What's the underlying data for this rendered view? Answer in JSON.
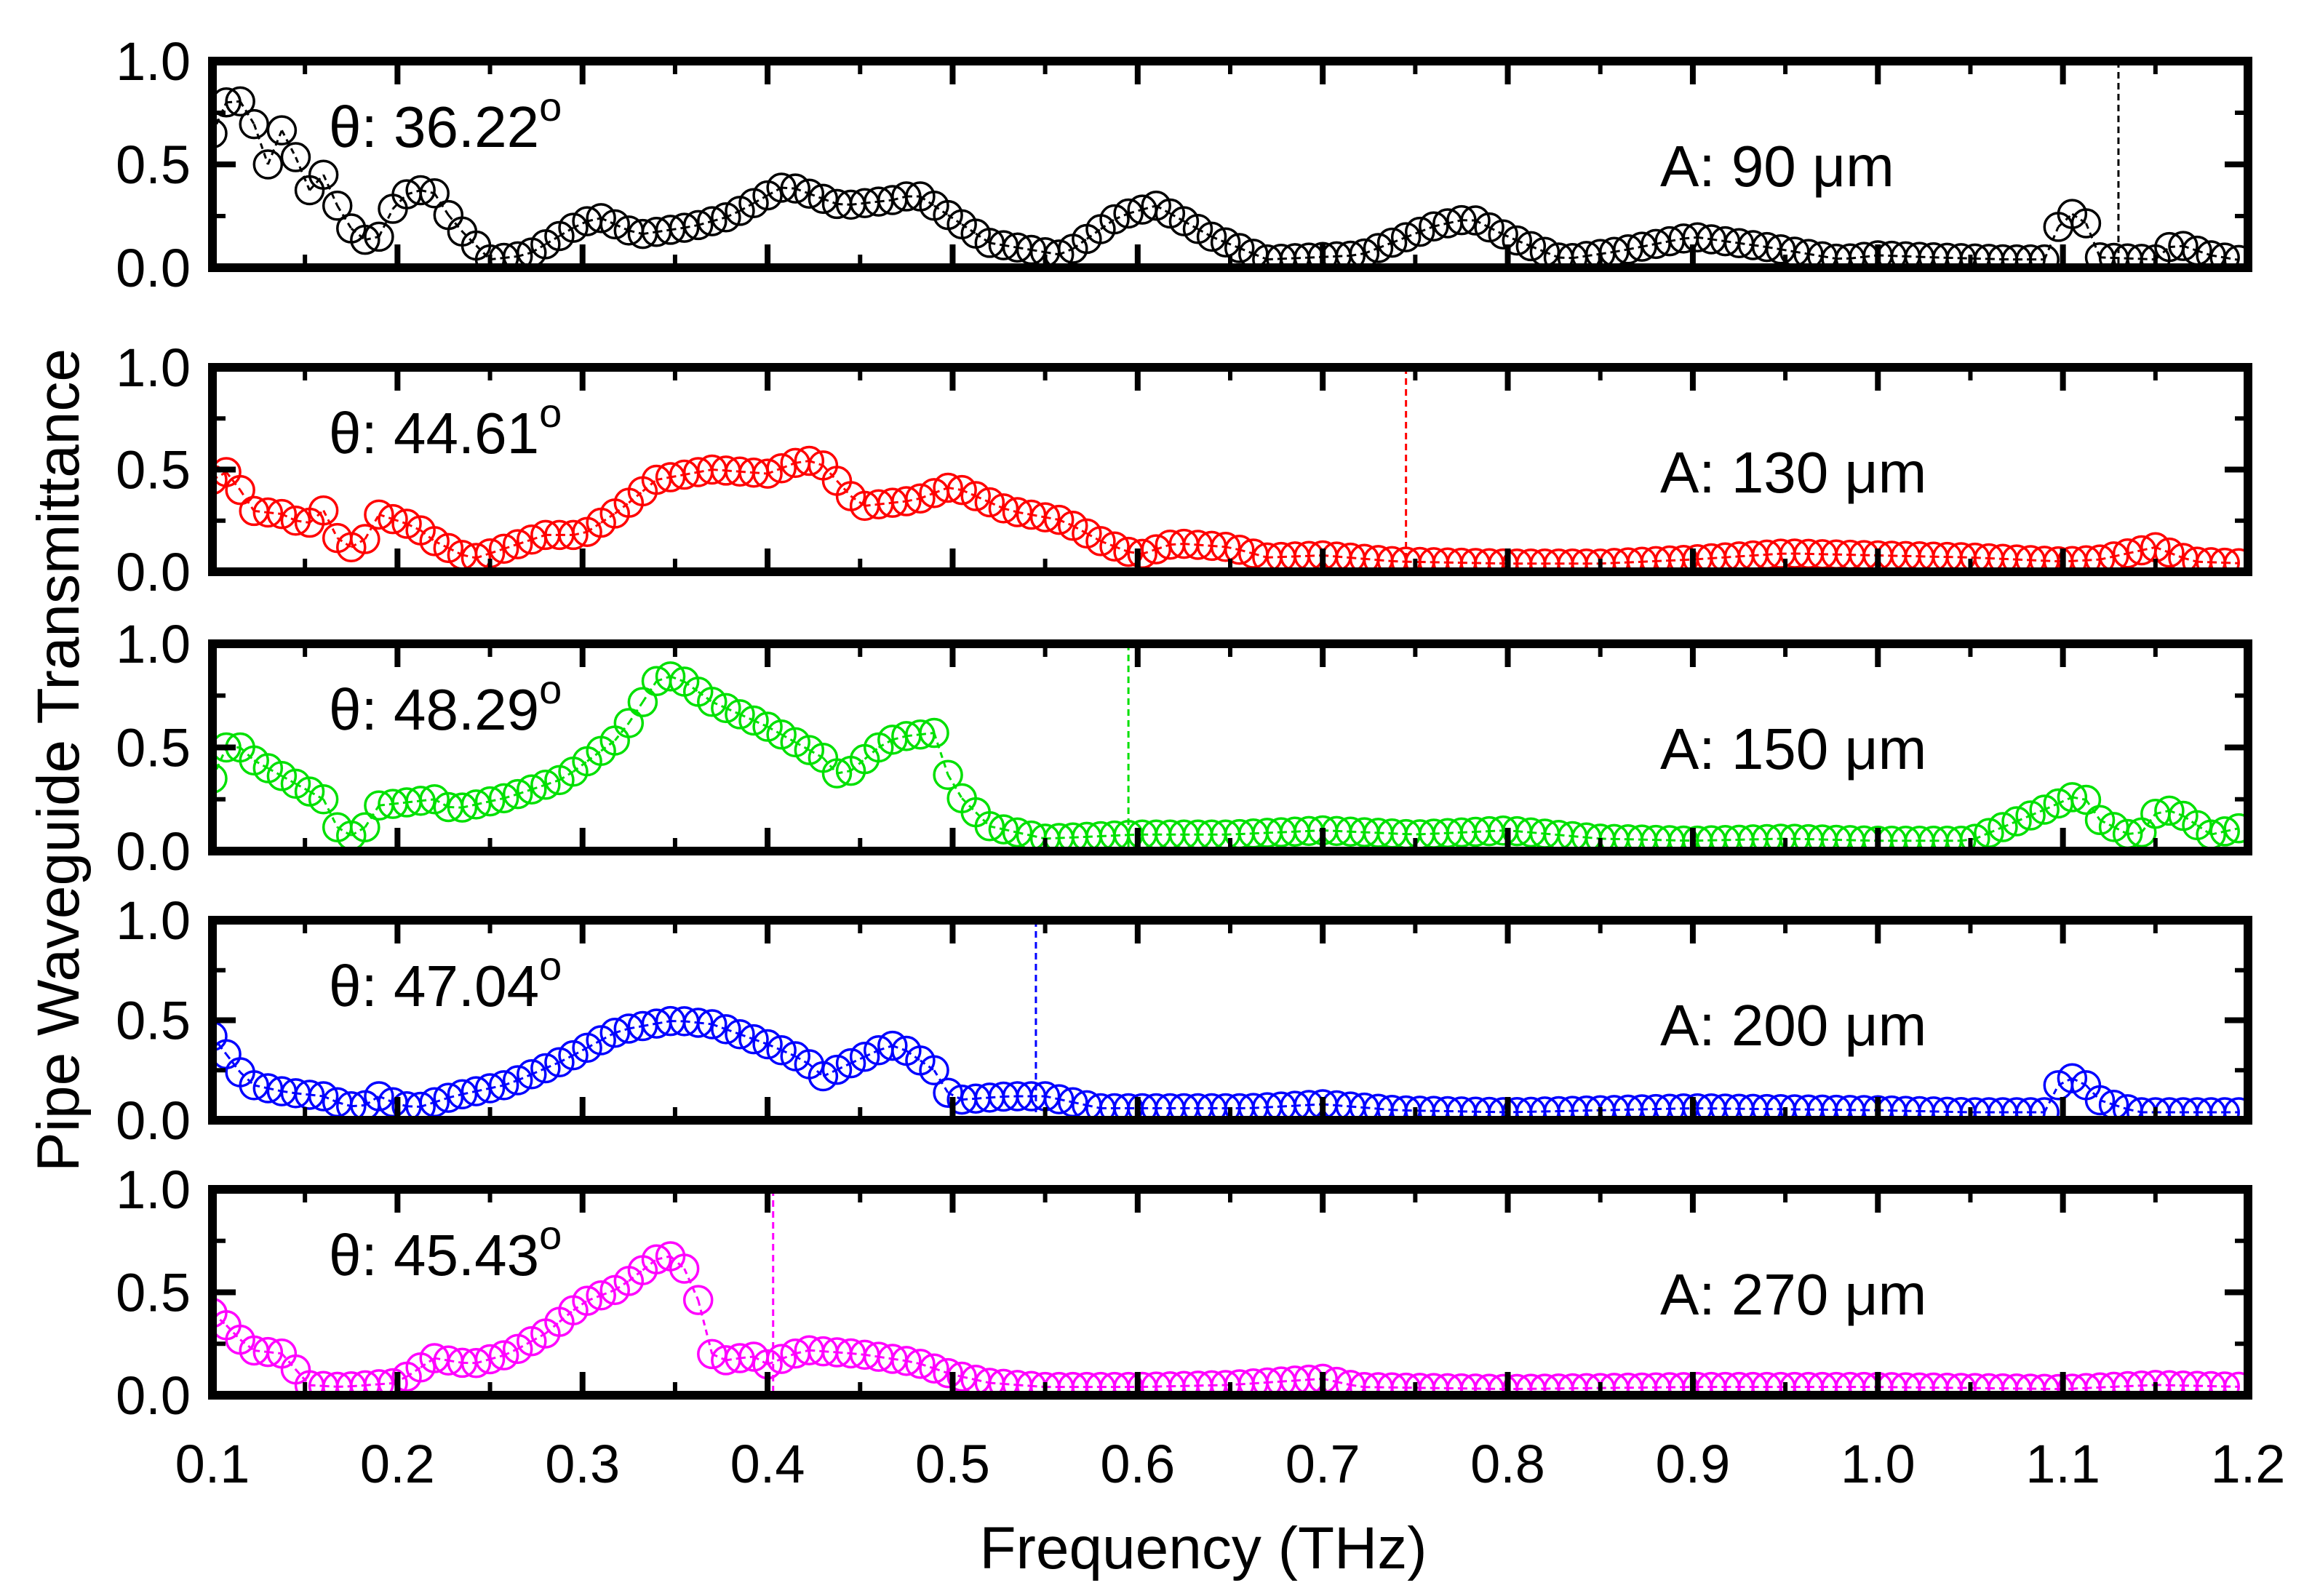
{
  "chart_data": {
    "type": "scatter",
    "ylabel": "Pipe Waveguide Transmittance",
    "xlabel": "Frequency (THz)",
    "xlim": [
      0.1,
      1.2
    ],
    "ylim": [
      0.0,
      1.0
    ],
    "x_tick_labels": [
      "0.1",
      "0.2",
      "0.3",
      "0.4",
      "0.5",
      "0.6",
      "0.7",
      "0.8",
      "0.9",
      "1.0",
      "1.1",
      "1.2"
    ],
    "y_tick_labels": [
      "0.0",
      "0.5",
      "1.0"
    ],
    "marker": "open-circle",
    "panels": [
      {
        "name": "A-90",
        "color": "#000000",
        "angle_prefix": "θ: ",
        "angle_value": "36.22",
        "angle_sup": "o",
        "size_label": "A: 90 μm",
        "cutoff_frequency": 1.13,
        "anchors": [
          [
            0.1,
            0.65
          ],
          [
            0.11,
            0.85
          ],
          [
            0.12,
            0.76
          ],
          [
            0.13,
            0.5
          ],
          [
            0.14,
            0.72
          ],
          [
            0.15,
            0.35
          ],
          [
            0.16,
            0.45
          ],
          [
            0.17,
            0.25
          ],
          [
            0.18,
            0.13
          ],
          [
            0.19,
            0.15
          ],
          [
            0.2,
            0.33
          ],
          [
            0.21,
            0.38
          ],
          [
            0.22,
            0.36
          ],
          [
            0.23,
            0.22
          ],
          [
            0.25,
            0.04
          ],
          [
            0.27,
            0.06
          ],
          [
            0.3,
            0.22
          ],
          [
            0.31,
            0.24
          ],
          [
            0.33,
            0.16
          ],
          [
            0.36,
            0.2
          ],
          [
            0.38,
            0.25
          ],
          [
            0.41,
            0.4
          ],
          [
            0.44,
            0.3
          ],
          [
            0.47,
            0.33
          ],
          [
            0.48,
            0.36
          ],
          [
            0.52,
            0.12
          ],
          [
            0.56,
            0.06
          ],
          [
            0.59,
            0.25
          ],
          [
            0.61,
            0.3
          ],
          [
            0.64,
            0.15
          ],
          [
            0.67,
            0.04
          ],
          [
            0.72,
            0.06
          ],
          [
            0.76,
            0.2
          ],
          [
            0.78,
            0.24
          ],
          [
            0.8,
            0.15
          ],
          [
            0.83,
            0.04
          ],
          [
            0.86,
            0.08
          ],
          [
            0.9,
            0.15
          ],
          [
            0.94,
            0.1
          ],
          [
            0.98,
            0.04
          ],
          [
            1.0,
            0.06
          ],
          [
            1.03,
            0.05
          ],
          [
            1.07,
            0.04
          ],
          [
            1.09,
            0.04
          ],
          [
            1.1,
            0.25
          ],
          [
            1.11,
            0.27
          ],
          [
            1.12,
            0.05
          ],
          [
            1.15,
            0.04
          ],
          [
            1.16,
            0.12
          ],
          [
            1.18,
            0.06
          ],
          [
            1.2,
            0.03
          ]
        ]
      },
      {
        "name": "A-130",
        "color": "#ff0000",
        "angle_prefix": "θ: ",
        "angle_value": "44.61",
        "angle_sup": "o",
        "size_label": "A: 130 μm",
        "cutoff_frequency": 0.745,
        "anchors": [
          [
            0.1,
            0.45
          ],
          [
            0.11,
            0.5
          ],
          [
            0.12,
            0.3
          ],
          [
            0.14,
            0.28
          ],
          [
            0.15,
            0.22
          ],
          [
            0.16,
            0.3
          ],
          [
            0.17,
            0.12
          ],
          [
            0.18,
            0.12
          ],
          [
            0.19,
            0.28
          ],
          [
            0.21,
            0.22
          ],
          [
            0.22,
            0.15
          ],
          [
            0.24,
            0.06
          ],
          [
            0.26,
            0.12
          ],
          [
            0.28,
            0.18
          ],
          [
            0.3,
            0.18
          ],
          [
            0.32,
            0.3
          ],
          [
            0.34,
            0.45
          ],
          [
            0.37,
            0.5
          ],
          [
            0.4,
            0.48
          ],
          [
            0.42,
            0.55
          ],
          [
            0.43,
            0.52
          ],
          [
            0.45,
            0.32
          ],
          [
            0.48,
            0.35
          ],
          [
            0.5,
            0.42
          ],
          [
            0.53,
            0.3
          ],
          [
            0.56,
            0.25
          ],
          [
            0.58,
            0.15
          ],
          [
            0.6,
            0.08
          ],
          [
            0.62,
            0.14
          ],
          [
            0.65,
            0.12
          ],
          [
            0.67,
            0.07
          ],
          [
            0.7,
            0.08
          ],
          [
            0.74,
            0.05
          ],
          [
            0.8,
            0.04
          ],
          [
            0.85,
            0.04
          ],
          [
            0.9,
            0.06
          ],
          [
            0.95,
            0.09
          ],
          [
            1.0,
            0.08
          ],
          [
            1.05,
            0.07
          ],
          [
            1.1,
            0.05
          ],
          [
            1.12,
            0.06
          ],
          [
            1.15,
            0.12
          ],
          [
            1.17,
            0.05
          ],
          [
            1.2,
            0.04
          ]
        ]
      },
      {
        "name": "A-150",
        "color": "#00e000",
        "angle_prefix": "θ: ",
        "angle_value": "48.29",
        "angle_sup": "o",
        "size_label": "A: 150 μm",
        "cutoff_frequency": 0.595,
        "anchors": [
          [
            0.1,
            0.35
          ],
          [
            0.11,
            0.55
          ],
          [
            0.12,
            0.45
          ],
          [
            0.14,
            0.35
          ],
          [
            0.16,
            0.25
          ],
          [
            0.17,
            0.07
          ],
          [
            0.18,
            0.08
          ],
          [
            0.19,
            0.22
          ],
          [
            0.22,
            0.25
          ],
          [
            0.23,
            0.2
          ],
          [
            0.26,
            0.26
          ],
          [
            0.29,
            0.35
          ],
          [
            0.32,
            0.55
          ],
          [
            0.34,
            0.82
          ],
          [
            0.35,
            0.85
          ],
          [
            0.37,
            0.72
          ],
          [
            0.4,
            0.6
          ],
          [
            0.43,
            0.45
          ],
          [
            0.44,
            0.35
          ],
          [
            0.46,
            0.5
          ],
          [
            0.47,
            0.55
          ],
          [
            0.49,
            0.57
          ],
          [
            0.5,
            0.3
          ],
          [
            0.52,
            0.12
          ],
          [
            0.55,
            0.06
          ],
          [
            0.6,
            0.08
          ],
          [
            0.65,
            0.08
          ],
          [
            0.7,
            0.1
          ],
          [
            0.75,
            0.08
          ],
          [
            0.8,
            0.1
          ],
          [
            0.85,
            0.06
          ],
          [
            0.9,
            0.05
          ],
          [
            0.95,
            0.06
          ],
          [
            1.0,
            0.05
          ],
          [
            1.05,
            0.05
          ],
          [
            1.09,
            0.2
          ],
          [
            1.11,
            0.28
          ],
          [
            1.12,
            0.15
          ],
          [
            1.14,
            0.06
          ],
          [
            1.15,
            0.18
          ],
          [
            1.16,
            0.2
          ],
          [
            1.18,
            0.08
          ],
          [
            1.2,
            0.12
          ]
        ]
      },
      {
        "name": "A-200",
        "color": "#0000ff",
        "angle_prefix": "θ: ",
        "angle_value": "47.04",
        "angle_sup": "o",
        "size_label": "A: 200 μm",
        "cutoff_frequency": 0.545,
        "anchors": [
          [
            0.1,
            0.42
          ],
          [
            0.11,
            0.3
          ],
          [
            0.12,
            0.18
          ],
          [
            0.14,
            0.14
          ],
          [
            0.16,
            0.12
          ],
          [
            0.17,
            0.08
          ],
          [
            0.18,
            0.06
          ],
          [
            0.19,
            0.12
          ],
          [
            0.2,
            0.08
          ],
          [
            0.21,
            0.06
          ],
          [
            0.23,
            0.12
          ],
          [
            0.26,
            0.18
          ],
          [
            0.29,
            0.3
          ],
          [
            0.32,
            0.45
          ],
          [
            0.35,
            0.5
          ],
          [
            0.37,
            0.48
          ],
          [
            0.4,
            0.38
          ],
          [
            0.42,
            0.3
          ],
          [
            0.43,
            0.22
          ],
          [
            0.46,
            0.35
          ],
          [
            0.47,
            0.38
          ],
          [
            0.49,
            0.25
          ],
          [
            0.5,
            0.1
          ],
          [
            0.53,
            0.12
          ],
          [
            0.55,
            0.12
          ],
          [
            0.58,
            0.06
          ],
          [
            0.62,
            0.06
          ],
          [
            0.66,
            0.06
          ],
          [
            0.7,
            0.08
          ],
          [
            0.74,
            0.05
          ],
          [
            0.8,
            0.04
          ],
          [
            0.9,
            0.06
          ],
          [
            1.0,
            0.05
          ],
          [
            1.05,
            0.04
          ],
          [
            1.09,
            0.04
          ],
          [
            1.1,
            0.22
          ],
          [
            1.11,
            0.2
          ],
          [
            1.12,
            0.1
          ],
          [
            1.14,
            0.04
          ],
          [
            1.2,
            0.04
          ]
        ]
      },
      {
        "name": "A-270",
        "color": "#ff00ff",
        "angle_prefix": "θ: ",
        "angle_value": "45.43",
        "angle_sup": "o",
        "size_label": "A: 270 μm",
        "cutoff_frequency": 0.403,
        "anchors": [
          [
            0.1,
            0.4
          ],
          [
            0.11,
            0.32
          ],
          [
            0.12,
            0.22
          ],
          [
            0.14,
            0.2
          ],
          [
            0.15,
            0.05
          ],
          [
            0.17,
            0.04
          ],
          [
            0.2,
            0.06
          ],
          [
            0.22,
            0.18
          ],
          [
            0.24,
            0.15
          ],
          [
            0.26,
            0.2
          ],
          [
            0.28,
            0.3
          ],
          [
            0.3,
            0.45
          ],
          [
            0.32,
            0.52
          ],
          [
            0.34,
            0.66
          ],
          [
            0.35,
            0.68
          ],
          [
            0.36,
            0.55
          ],
          [
            0.37,
            0.2
          ],
          [
            0.38,
            0.16
          ],
          [
            0.39,
            0.2
          ],
          [
            0.4,
            0.15
          ],
          [
            0.42,
            0.22
          ],
          [
            0.45,
            0.2
          ],
          [
            0.48,
            0.16
          ],
          [
            0.5,
            0.1
          ],
          [
            0.52,
            0.06
          ],
          [
            0.55,
            0.04
          ],
          [
            0.6,
            0.04
          ],
          [
            0.65,
            0.05
          ],
          [
            0.7,
            0.08
          ],
          [
            0.72,
            0.04
          ],
          [
            0.8,
            0.03
          ],
          [
            0.9,
            0.04
          ],
          [
            1.0,
            0.04
          ],
          [
            1.1,
            0.03
          ],
          [
            1.15,
            0.05
          ],
          [
            1.2,
            0.04
          ]
        ]
      }
    ]
  }
}
